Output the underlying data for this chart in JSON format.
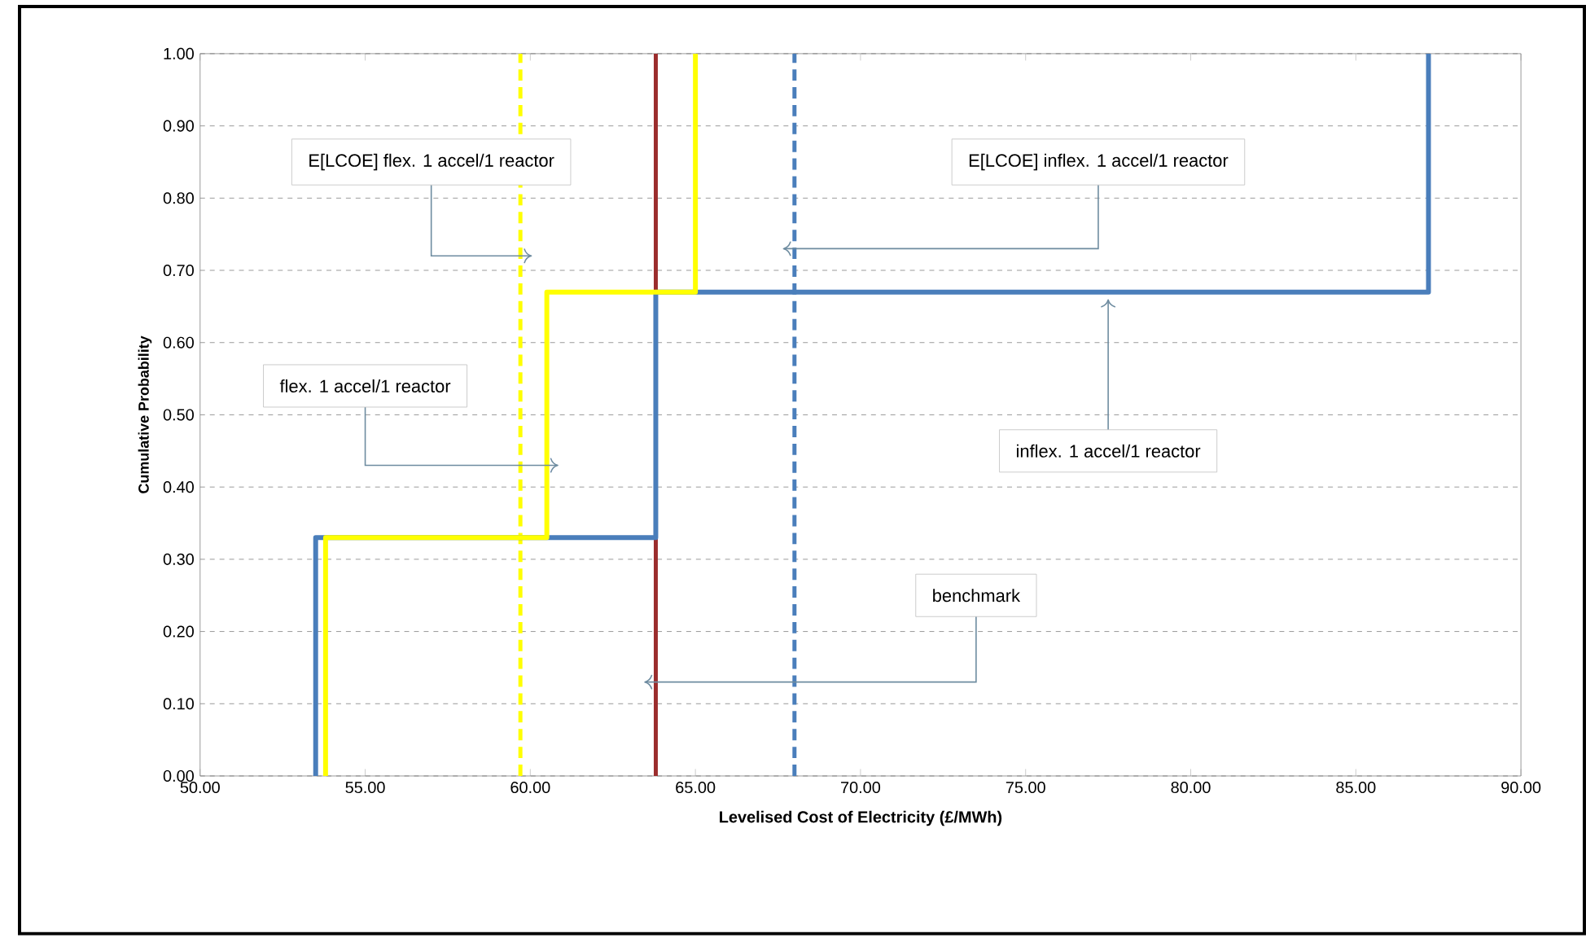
{
  "chart_data": {
    "type": "line",
    "xlabel": "Levelised Cost of Electricity (£/MWh)",
    "ylabel": "Cumulative Probability",
    "series": [
      {
        "color": "#4a7ebb",
        "x": [
          53.5,
          53.5,
          63.8,
          63.8,
          87.2,
          87.2
        ],
        "values": [
          0,
          0.33,
          0.33,
          0.67,
          0.67,
          1.0
        ]
      },
      {
        "color": "#ffff00",
        "x": [
          53.8,
          53.8,
          60.5,
          60.5,
          65.0,
          65.0
        ],
        "values": [
          0,
          0.33,
          0.33,
          0.67,
          0.67,
          1.0
        ]
      }
    ],
    "ref_lines": [
      {
        "axis": "x",
        "value": 63.8,
        "color": "#9b2d2d",
        "line_style": "solid"
      },
      {
        "axis": "x",
        "value": 59.7,
        "color": "#ffff00",
        "line_style": "dashed"
      },
      {
        "axis": "x",
        "value": 68.0,
        "color": "#4a7ebb",
        "line_style": "dashed"
      }
    ],
    "annotations": [
      {
        "text": "E[LCOE] flex. 1 accel/1 reactor",
        "x": 59.7,
        "y": 0.72
      },
      {
        "text": "E[LCOE] inflex. 1 accel/1 reactor",
        "x": 68.0,
        "y": 0.73
      },
      {
        "text": "flex. 1 accel/1 reactor",
        "x": 60.5,
        "y": 0.43
      },
      {
        "text": "inflex. 1 accel/1 reactor",
        "x": 77.5,
        "y": 0.67
      },
      {
        "text": "benchmark",
        "x": 63.8,
        "y": 0.13
      }
    ],
    "xlim": [
      50,
      90
    ],
    "ylim": [
      0,
      1
    ],
    "xticks": [
      {
        "value": 50,
        "label": "50.00"
      },
      {
        "value": 55,
        "label": "55.00"
      },
      {
        "value": 60,
        "label": "60.00"
      },
      {
        "value": 65,
        "label": "65.00"
      },
      {
        "value": 70,
        "label": "70.00"
      },
      {
        "value": 75,
        "label": "75.00"
      },
      {
        "value": 80,
        "label": "80.00"
      },
      {
        "value": 85,
        "label": "85.00"
      },
      {
        "value": 90,
        "label": "90.00"
      }
    ],
    "yticks": [
      {
        "value": 0,
        "label": "0.00"
      },
      {
        "value": 0.1,
        "label": "0.10"
      },
      {
        "value": 0.2,
        "label": "0.20"
      },
      {
        "value": 0.3,
        "label": "0.30"
      },
      {
        "value": 0.4,
        "label": "0.40"
      },
      {
        "value": 0.5,
        "label": "0.50"
      },
      {
        "value": 0.6,
        "label": "0.60"
      },
      {
        "value": 0.7,
        "label": "0.70"
      },
      {
        "value": 0.8,
        "label": "0.80"
      },
      {
        "value": 0.9,
        "label": "0.90"
      },
      {
        "value": 1.0,
        "label": "1.00"
      }
    ],
    "grid": "y",
    "marker": "none",
    "line_style": "solid"
  }
}
